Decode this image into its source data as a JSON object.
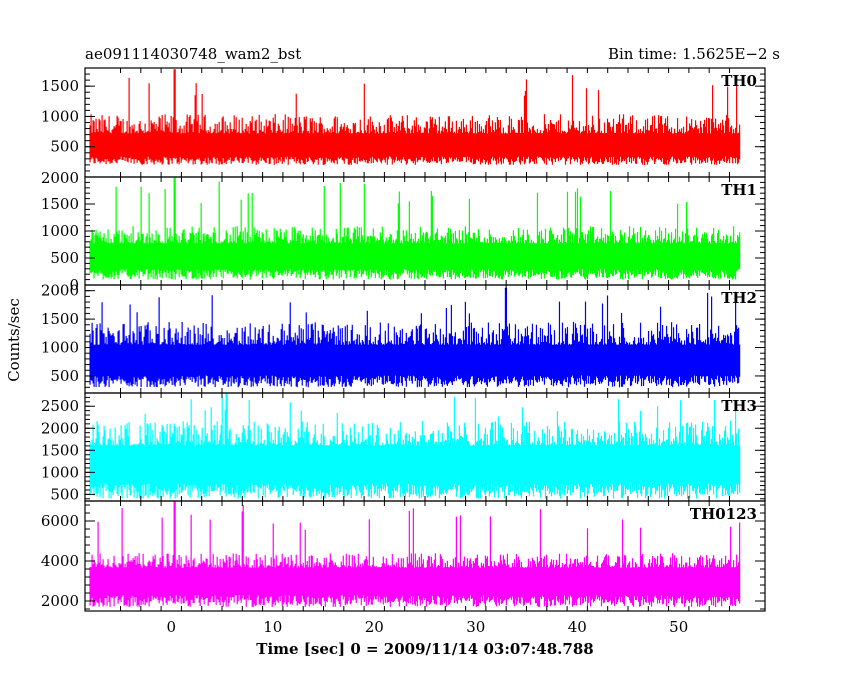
{
  "chart_data": {
    "type": "line",
    "title_left": "ae091114030748_wam2_bst",
    "title_right": "Bin time: 1.5625E−2 s",
    "xlabel": "Time [sec] 0 = 2009/11/14 03:07:48.788",
    "ylabel": "Counts/sec",
    "xlim": [
      -8.5,
      58.5
    ],
    "x_range": [
      -8,
      56
    ],
    "xticks": [
      0,
      10,
      20,
      30,
      40,
      50
    ],
    "panels": [
      {
        "name": "TH0",
        "color": "#ff0000",
        "ylim": [
          0,
          1800
        ],
        "yticks": [
          500,
          1000,
          1500
        ],
        "top_tick": 2000,
        "baseline": 600,
        "spread": 200,
        "lower_min": 200,
        "spike_max": 1780,
        "spike_time": 0.3
      },
      {
        "name": "TH1",
        "color": "#00ff00",
        "ylim": [
          0,
          2000
        ],
        "yticks": [
          0,
          500,
          1000,
          1500
        ],
        "baseline": 650,
        "spread": 200,
        "lower_min": 100,
        "spike_max": 2000,
        "spike_time": 0.3
      },
      {
        "name": "TH2",
        "color": "#0000ff",
        "ylim": [
          200,
          2100
        ],
        "yticks": [
          500,
          1000,
          1500,
          2000
        ],
        "baseline": 900,
        "spread": 250,
        "lower_min": 300,
        "spike_max": 2050,
        "spike_time": 33.0
      },
      {
        "name": "TH3",
        "color": "#00ffff",
        "ylim": [
          350,
          2800
        ],
        "yticks": [
          500,
          1000,
          1500,
          2000,
          2500
        ],
        "baseline": 1400,
        "spread": 350,
        "lower_min": 400,
        "spike_max": 2800,
        "spike_time": 5.5
      },
      {
        "name": "TH0123",
        "color": "#ff00ff",
        "ylim": [
          1500,
          7000
        ],
        "yticks": [
          2000,
          4000,
          6000
        ],
        "baseline": 3400,
        "spread": 450,
        "lower_min": 1700,
        "spike_max": 7000,
        "spike_time": 0.3
      }
    ]
  }
}
